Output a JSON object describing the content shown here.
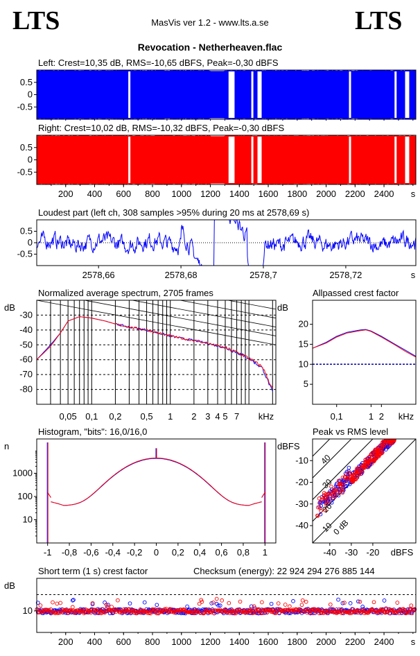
{
  "header": {
    "logo_left": "LTS",
    "logo_right": "LTS",
    "version": "MasVis ver 1.2 - www.lts.a.se",
    "file_title": "Revocation - Netherheaven.flac"
  },
  "colors": {
    "left": "#0000ff",
    "right": "#ff0000",
    "grid": "#000000"
  },
  "chart_data": [
    {
      "id": "left-waveform",
      "type": "area",
      "title": "Left: Crest=10,35 dB, RMS=-10,65 dBFS, Peak=-0,30 dBFS",
      "ytick_labels": [
        "0.5",
        "0",
        "-0.5"
      ],
      "yticks": [
        0.5,
        0,
        -0.5
      ],
      "ylim": [
        -1,
        1
      ],
      "xlim": [
        0,
        2620
      ],
      "dropouts_s": [
        640,
        1340,
        1360,
        1490,
        1540,
        2165,
        2480,
        2560
      ],
      "series": [
        {
          "name": "",
          "color": "#0000ff"
        }
      ]
    },
    {
      "id": "right-waveform",
      "type": "area",
      "title": "Right: Crest=10,02 dB, RMS=-10,32 dBFS, Peak=-0,30 dBFS",
      "ytick_labels": [
        "0.5",
        "0",
        "-0.5"
      ],
      "yticks": [
        0.5,
        0,
        -0.5
      ],
      "ylim": [
        -1,
        1
      ],
      "xlim": [
        0,
        2620
      ],
      "xticks": [
        200,
        400,
        600,
        800,
        1000,
        1200,
        1400,
        1600,
        1800,
        2000,
        2200,
        2400
      ],
      "xtick_labels": [
        "200",
        "400",
        "600",
        "800",
        "1000",
        "1200",
        "1400",
        "1600",
        "1800",
        "2000",
        "2200",
        "2400"
      ],
      "xunit": "s",
      "series": [
        {
          "name": "",
          "color": "#ff0000"
        }
      ]
    },
    {
      "id": "loudest-part",
      "type": "line",
      "title": "Loudest part (left  ch, 308 samples >95% during 20 ms at 2578,69 s)",
      "ytick_labels": [
        "0.5",
        "0",
        "-0.5"
      ],
      "yticks": [
        0.5,
        0,
        -0.5
      ],
      "ylim": [
        -1,
        1
      ],
      "xlim": [
        2578.645,
        2578.737
      ],
      "xticks": [
        2578.66,
        2578.68,
        2578.7,
        2578.72
      ],
      "xtick_labels": [
        "2578,66",
        "2578,68",
        "2578,7",
        "2578,72"
      ],
      "xunit": "s",
      "series": [
        {
          "name": "",
          "color": "#0000ff"
        }
      ]
    },
    {
      "id": "spectrum",
      "type": "line",
      "title": "Normalized average spectrum, 2705 frames",
      "ylabel": "dB",
      "yticks": [
        -30,
        -40,
        -50,
        -60,
        -70,
        -80
      ],
      "ytick_labels": [
        "-30",
        "-40",
        "-50",
        "-60",
        "-70",
        "-80"
      ],
      "ylim": [
        -90,
        -20
      ],
      "xscale": "log",
      "xlim": [
        0.02,
        22
      ],
      "xticks": [
        0.05,
        0.1,
        0.2,
        0.5,
        1,
        2,
        3,
        4,
        5,
        7
      ],
      "xtick_labels": [
        "0,05",
        "0,1",
        "0,2",
        "0,5",
        "1",
        "2",
        "3",
        "4",
        "5",
        "7"
      ],
      "xunit": "kHz",
      "x": [
        0.02,
        0.03,
        0.04,
        0.05,
        0.07,
        0.1,
        0.15,
        0.2,
        0.3,
        0.5,
        0.7,
        1,
        1.5,
        2,
        3,
        5,
        7,
        10,
        15,
        20
      ],
      "series": [
        {
          "name": "",
          "color": "#0000ff",
          "values": [
            -60,
            -50,
            -42,
            -34,
            -31,
            -32,
            -34,
            -36,
            -38,
            -40,
            -42,
            -44,
            -46,
            -47,
            -49,
            -52,
            -55,
            -59,
            -66,
            -82
          ]
        },
        {
          "name": "",
          "color": "#ff0000",
          "values": [
            -60,
            -51,
            -42,
            -34,
            -31,
            -32,
            -34,
            -36,
            -38,
            -40,
            -42,
            -44,
            -46,
            -47,
            -49,
            -52,
            -55,
            -59,
            -65,
            -80
          ]
        }
      ]
    },
    {
      "id": "allpassed-crest",
      "type": "line",
      "title": "Allpassed crest factor",
      "ylabel": "dB",
      "yticks": [
        20,
        15,
        10,
        5
      ],
      "ytick_labels": [
        "20",
        "15",
        "10",
        "5"
      ],
      "ylim": [
        0,
        26
      ],
      "xscale": "log",
      "xlim": [
        0.02,
        20
      ],
      "xticks": [
        0.1,
        1,
        2
      ],
      "xtick_labels": [
        "0,1",
        "1",
        "2"
      ],
      "xunit": "kHz",
      "x": [
        0.02,
        0.05,
        0.1,
        0.2,
        0.5,
        0.7,
        1,
        2,
        5,
        10,
        20
      ],
      "series": [
        {
          "name": "",
          "color": "#0000ff",
          "values": [
            14,
            15.5,
            17,
            18,
            18.6,
            18.7,
            18.3,
            17,
            15,
            13.5,
            12
          ]
        },
        {
          "name": "",
          "color": "#ff0000",
          "values": [
            14,
            15.3,
            16.8,
            17.8,
            18.4,
            18.6,
            18.2,
            16.8,
            14.8,
            13.2,
            11.8
          ]
        }
      ],
      "reference_line_db": 10
    },
    {
      "id": "histogram",
      "type": "line",
      "title": "Histogram, \"bits\": 16,0/16,0",
      "ylabel": "n",
      "yscale": "log",
      "yticks": [
        1000,
        100,
        10
      ],
      "ytick_labels": [
        "1000",
        "100",
        "10"
      ],
      "ylim": [
        1,
        30000
      ],
      "xlim": [
        -1.1,
        1.1
      ],
      "xticks": [
        -1,
        -0.8,
        -0.6,
        -0.4,
        -0.2,
        0,
        0.2,
        0.4,
        0.6,
        0.8,
        1
      ],
      "xtick_labels": [
        "-1",
        "-0,8",
        "-0,6",
        "-0,4",
        "-0,2",
        "0",
        "0,2",
        "0,4",
        "0,6",
        "0,8",
        "1"
      ],
      "series": [
        {
          "name": "",
          "color": "#0000ff"
        },
        {
          "name": "",
          "color": "#ff0000"
        }
      ]
    },
    {
      "id": "peak-vs-rms",
      "type": "scatter",
      "title": "Peak vs RMS level",
      "ylabel": "dBFS",
      "xlabel": "dBFS",
      "yticks": [
        -10,
        -20,
        -30,
        -40
      ],
      "ytick_labels": [
        "-10",
        "-20",
        "-30",
        "-40"
      ],
      "ylim": [
        -48,
        0
      ],
      "xticks": [
        -40,
        -30,
        -20
      ],
      "xtick_labels": [
        "-40",
        "-30",
        "-20"
      ],
      "xlim": [
        -48,
        0
      ],
      "diagonal_labels": [
        "40",
        "30",
        "20",
        "10",
        "0 dB"
      ],
      "series": [
        {
          "name": "",
          "color": "#0000ff"
        },
        {
          "name": "",
          "color": "#ff0000"
        }
      ]
    },
    {
      "id": "short-term-crest",
      "type": "scatter",
      "title": "Short term (1 s) crest factor",
      "checksum": "Checksum (energy):  22 924 294 276 885 144",
      "ylabel": "dB",
      "yticks": [
        10
      ],
      "ytick_labels": [
        "10"
      ],
      "xlim": [
        0,
        2620
      ],
      "xticks": [
        200,
        400,
        600,
        800,
        1000,
        1200,
        1400,
        1600,
        1800,
        2000,
        2200,
        2400
      ],
      "xtick_labels": [
        "200",
        "400",
        "600",
        "800",
        "1000",
        "1200",
        "1400",
        "1600",
        "1800",
        "2000",
        "2200",
        "2400"
      ],
      "xunit": "s",
      "reference_line_db": 20,
      "series": [
        {
          "name": "",
          "color": "#0000ff"
        },
        {
          "name": "",
          "color": "#ff0000"
        }
      ]
    }
  ]
}
